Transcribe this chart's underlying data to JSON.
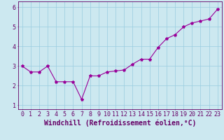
{
  "x": [
    0,
    1,
    2,
    3,
    4,
    5,
    6,
    7,
    8,
    9,
    10,
    11,
    12,
    13,
    14,
    15,
    16,
    17,
    18,
    19,
    20,
    21,
    22,
    23
  ],
  "y": [
    3.0,
    2.7,
    2.7,
    3.0,
    2.2,
    2.2,
    2.2,
    1.3,
    2.5,
    2.5,
    2.7,
    2.75,
    2.8,
    3.1,
    3.35,
    3.35,
    3.95,
    4.4,
    4.6,
    5.0,
    5.2,
    5.3,
    5.4,
    5.9
  ],
  "xlabel": "Windchill (Refroidissement éolien,°C)",
  "xlim": [
    -0.5,
    23.5
  ],
  "ylim": [
    0.8,
    6.3
  ],
  "yticks": [
    1,
    2,
    3,
    4,
    5,
    6
  ],
  "xticks": [
    0,
    1,
    2,
    3,
    4,
    5,
    6,
    7,
    8,
    9,
    10,
    11,
    12,
    13,
    14,
    15,
    16,
    17,
    18,
    19,
    20,
    21,
    22,
    23
  ],
  "line_color": "#990099",
  "marker": "*",
  "marker_size": 3,
  "bg_color": "#cce8f0",
  "grid_color": "#99cce0",
  "xlabel_color": "#660066",
  "tick_color": "#660066",
  "spine_color": "#660066",
  "xlabel_fontsize": 7.0,
  "tick_fontsize": 6.0
}
